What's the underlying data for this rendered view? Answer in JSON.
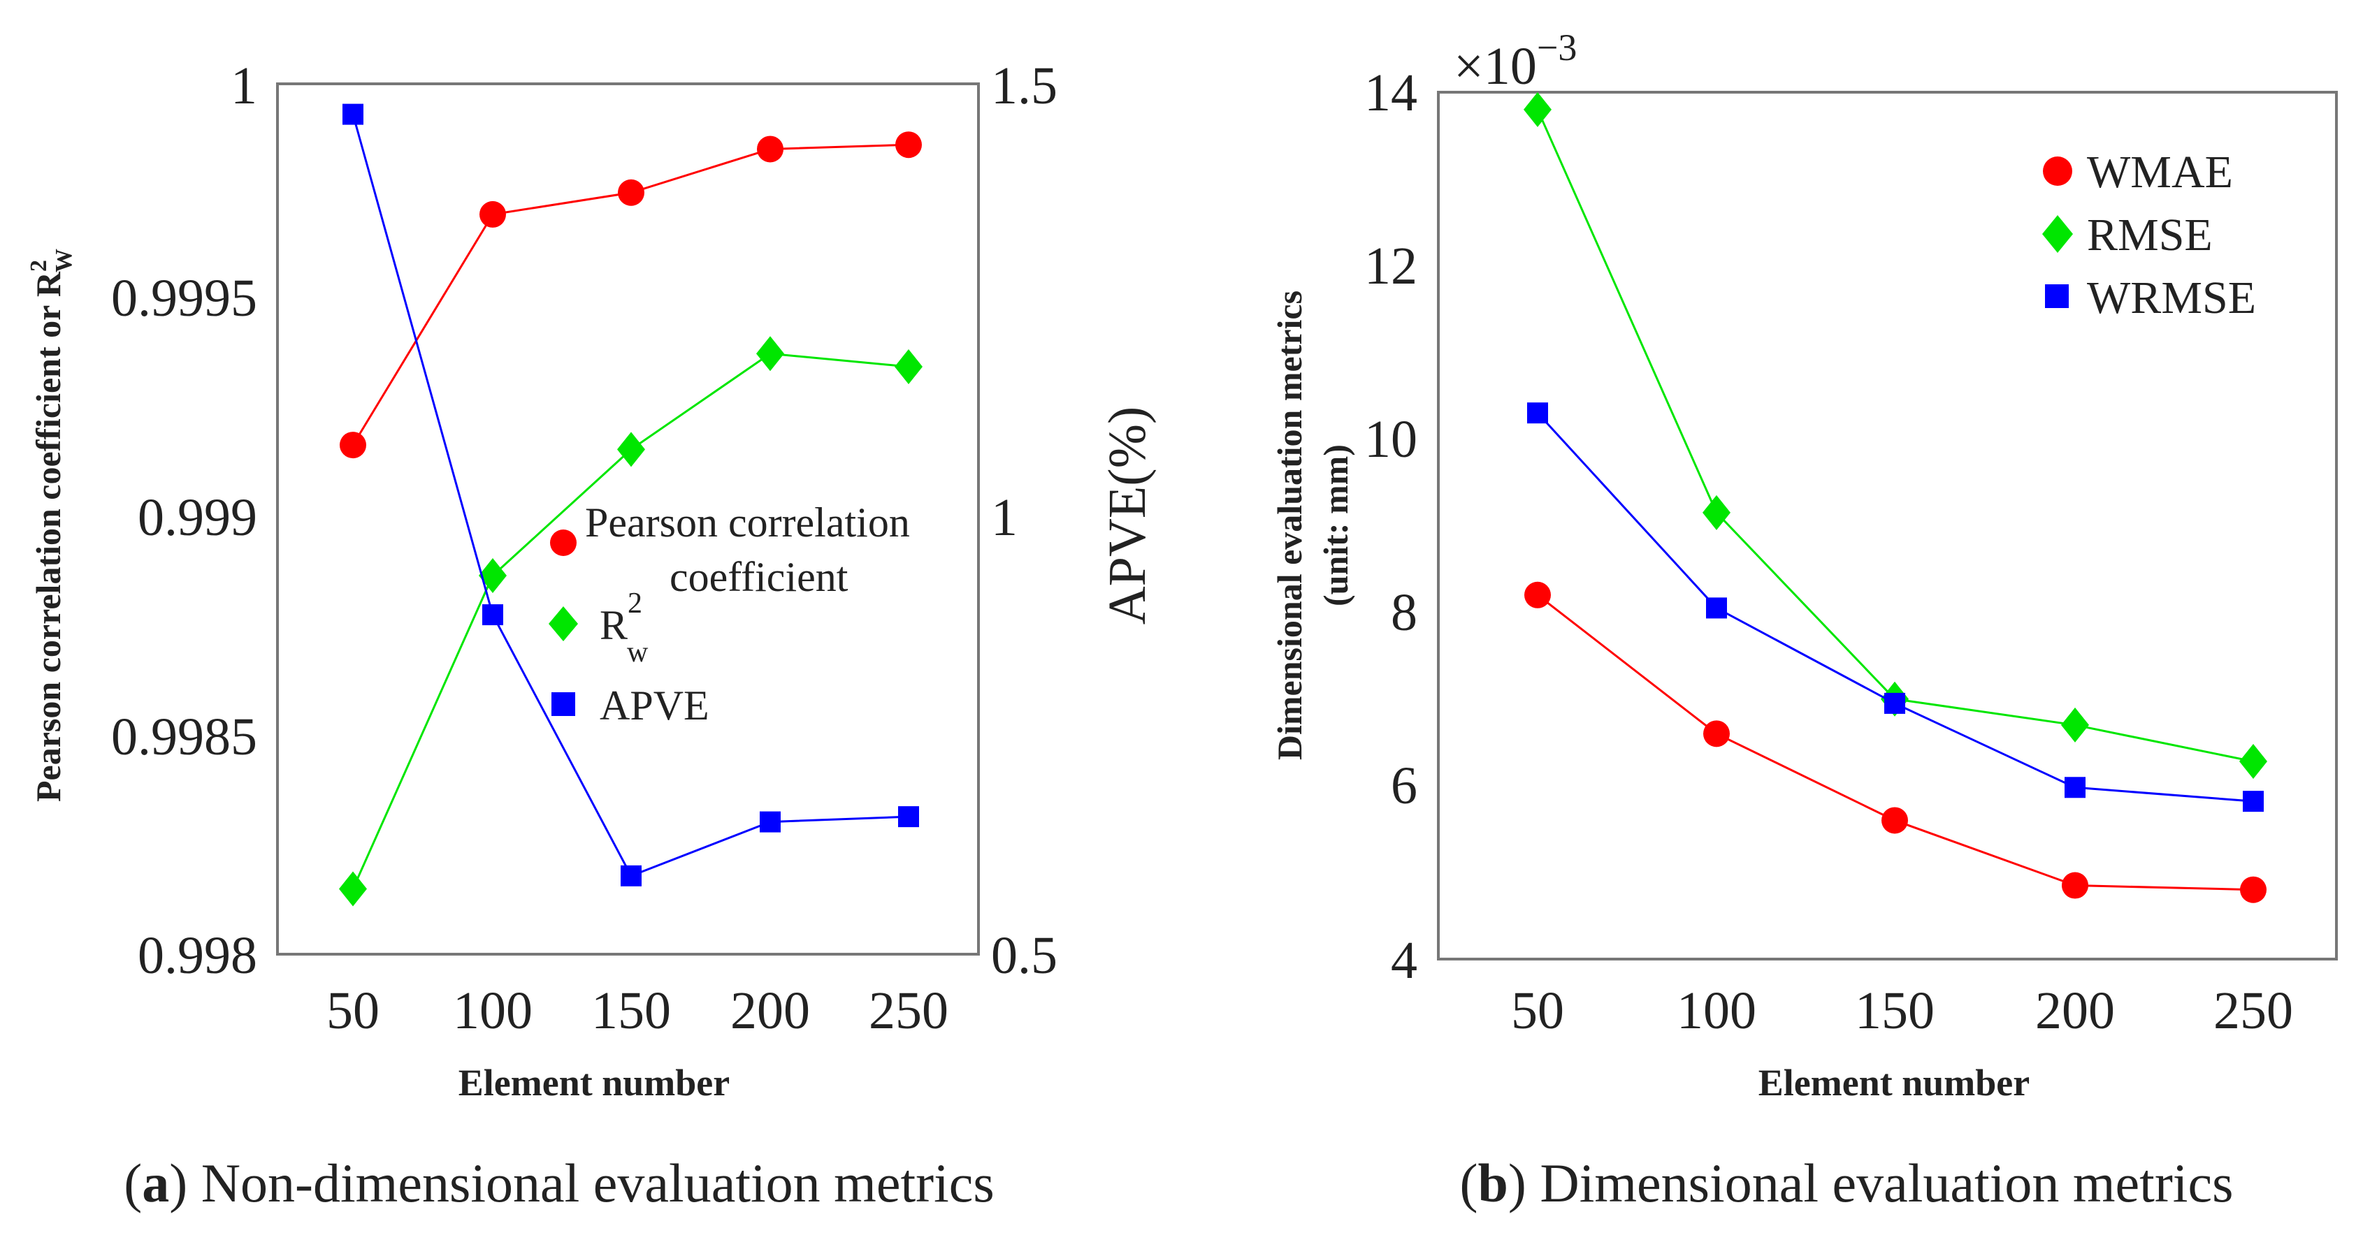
{
  "chart_data": [
    {
      "type": "line",
      "panel": "a",
      "caption_letter": "a",
      "caption": "Non-dimensional evaluation metrics",
      "xlabel": "Element number",
      "ylabel_left": "Pearson correlation coefficient or R",
      "ylabel_left_sup": "2",
      "ylabel_left_sub": "W",
      "ylabel_right": "APVE(%)",
      "x": [
        50,
        100,
        150,
        200,
        250
      ],
      "xticks": [
        "50",
        "100",
        "150",
        "200",
        "250"
      ],
      "ylim_left": [
        0.998,
        1
      ],
      "yticks_left": [
        "0.998",
        "0.9985",
        "0.999",
        "0.9995",
        "1"
      ],
      "ylim_right": [
        0.5,
        1.5
      ],
      "yticks_right": [
        "0.5",
        "1",
        "1.5"
      ],
      "series": [
        {
          "name": "Pearson correlation coefficient",
          "legend_line1": "Pearson correlation",
          "legend_line2": "coefficient",
          "axis": "left",
          "marker": "circle",
          "color": "#ff0000",
          "values": [
            0.99917,
            0.9997,
            0.99975,
            0.99985,
            0.99986
          ]
        },
        {
          "name": "R",
          "legend_sup": "2",
          "legend_sub": "w",
          "axis": "left",
          "marker": "diamond",
          "color": "#00e600",
          "values": [
            0.99815,
            0.99887,
            0.99916,
            0.99938,
            0.99935
          ]
        },
        {
          "name": "APVE",
          "axis": "right",
          "marker": "square",
          "color": "#0000ff",
          "values": [
            1.465,
            0.89,
            0.59,
            0.652,
            0.658
          ]
        }
      ]
    },
    {
      "type": "line",
      "panel": "b",
      "caption_letter": "b",
      "caption": "Dimensional evaluation metrics",
      "xlabel": "Element number",
      "ylabel_line1": "Dimensional evaluation metrics",
      "ylabel_line2": "(unit: mm)",
      "scale_base": "×10",
      "scale_exp": "−3",
      "x": [
        50,
        100,
        150,
        200,
        250
      ],
      "xticks": [
        "50",
        "100",
        "150",
        "200",
        "250"
      ],
      "ylim": [
        4,
        14
      ],
      "yticks": [
        "4",
        "6",
        "8",
        "10",
        "12",
        "14"
      ],
      "series": [
        {
          "name": "WMAE",
          "marker": "circle",
          "color": "#ff0000",
          "values": [
            8.2,
            6.6,
            5.6,
            4.85,
            4.8
          ]
        },
        {
          "name": "RMSE",
          "marker": "diamond",
          "color": "#00e600",
          "values": [
            13.8,
            9.15,
            7.0,
            6.7,
            6.28
          ]
        },
        {
          "name": "WRMSE",
          "marker": "square",
          "color": "#0000ff",
          "values": [
            10.3,
            8.05,
            6.95,
            5.98,
            5.82
          ]
        }
      ]
    }
  ]
}
